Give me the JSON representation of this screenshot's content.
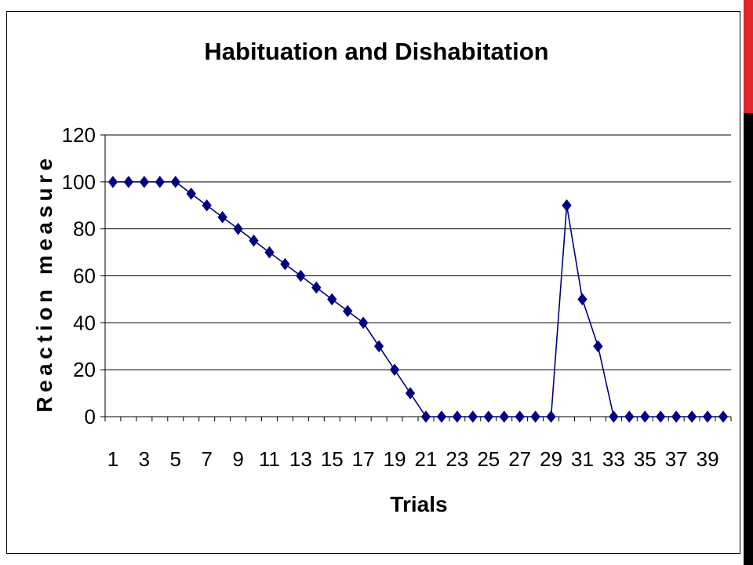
{
  "colors": {
    "series": "#000080",
    "grid": "#000000",
    "accent_red": "#e0262b",
    "accent_black": "#000000"
  },
  "chart_data": {
    "type": "line",
    "title": "Habituation and Dishabitation",
    "xlabel": "Trials",
    "ylabel": "Reaction measure",
    "ylim": [
      0,
      120
    ],
    "yticks": [
      "0",
      "20",
      "40",
      "60",
      "80",
      "100",
      "120"
    ],
    "xtick_labels": [
      "1",
      "3",
      "5",
      "7",
      "9",
      "11",
      "13",
      "15",
      "17",
      "19",
      "21",
      "23",
      "25",
      "27",
      "29",
      "31",
      "33",
      "35",
      "37",
      "39"
    ],
    "grid": true,
    "legend": "none",
    "marker": "diamond",
    "x": [
      1,
      2,
      3,
      4,
      5,
      6,
      7,
      8,
      9,
      10,
      11,
      12,
      13,
      14,
      15,
      16,
      17,
      18,
      19,
      20,
      21,
      22,
      23,
      24,
      25,
      26,
      27,
      28,
      29,
      30,
      31,
      32,
      33,
      34,
      35,
      36,
      37,
      38,
      39,
      40
    ],
    "values": [
      100,
      100,
      100,
      100,
      100,
      95,
      90,
      85,
      80,
      75,
      70,
      65,
      60,
      55,
      50,
      45,
      40,
      30,
      20,
      10,
      0,
      0,
      0,
      0,
      0,
      0,
      0,
      0,
      0,
      90,
      50,
      30,
      0,
      0,
      0,
      0,
      0,
      0,
      0,
      0
    ]
  }
}
